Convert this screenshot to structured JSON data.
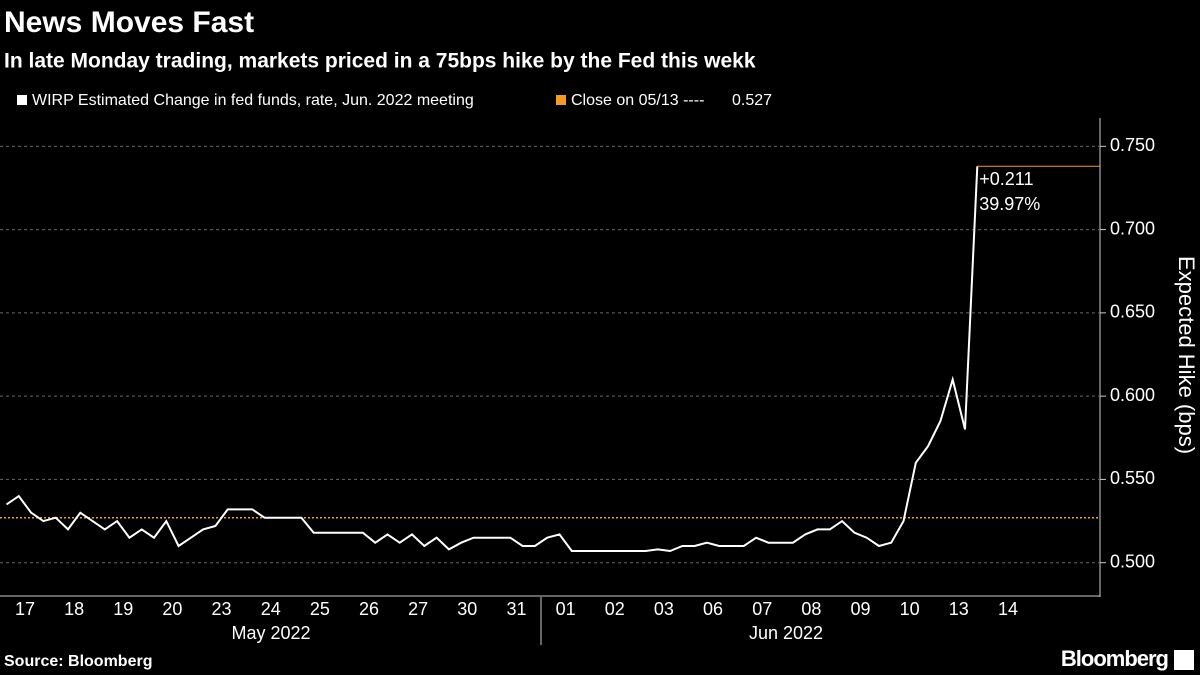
{
  "chart_data": {
    "type": "line",
    "title": "News Moves Fast",
    "subtitle": "In late Monday trading, markets priced in a 75bps hike by the Fed this wekk",
    "y_label": "Expected Hike (bps)",
    "source": "Source: Bloomberg",
    "brand": "Bloomberg",
    "months": [
      "May 2022",
      "Jun 2022"
    ],
    "categories": [
      "17",
      null,
      null,
      null,
      "18",
      null,
      null,
      null,
      "19",
      null,
      null,
      null,
      "20",
      null,
      null,
      null,
      "23",
      null,
      null,
      null,
      "24",
      null,
      null,
      null,
      "25",
      null,
      null,
      null,
      "26",
      null,
      null,
      null,
      "27",
      null,
      null,
      null,
      "30",
      null,
      null,
      null,
      "31",
      null,
      null,
      null,
      "01",
      null,
      null,
      null,
      "02",
      null,
      null,
      null,
      "03",
      null,
      null,
      null,
      "06",
      null,
      null,
      null,
      "07",
      null,
      null,
      null,
      "08",
      null,
      null,
      null,
      "09",
      null,
      null,
      null,
      "10",
      null,
      null,
      null,
      "13",
      null,
      null,
      null,
      "14",
      null,
      null,
      null
    ],
    "series": [
      {
        "name": "WIRP Estimated Change in fed funds, rate, Jun. 2022 meeting",
        "color": "#ffffff",
        "values": [
          0.535,
          0.54,
          0.53,
          0.525,
          0.527,
          0.52,
          0.53,
          0.525,
          0.52,
          0.525,
          0.515,
          0.52,
          0.515,
          0.525,
          0.51,
          0.515,
          0.52,
          0.522,
          0.532,
          0.532,
          0.532,
          0.527,
          0.527,
          0.527,
          0.527,
          0.518,
          0.518,
          0.518,
          0.518,
          0.518,
          0.512,
          0.517,
          0.512,
          0.517,
          0.51,
          0.515,
          0.508,
          0.512,
          0.515,
          0.515,
          0.515,
          0.515,
          0.51,
          0.51,
          0.515,
          0.517,
          0.507,
          0.507,
          0.507,
          0.507,
          0.507,
          0.507,
          0.507,
          0.508,
          0.507,
          0.51,
          0.51,
          0.512,
          0.51,
          0.51,
          0.51,
          0.515,
          0.512,
          0.512,
          0.512,
          0.517,
          0.52,
          0.52,
          0.525,
          0.518,
          0.515,
          0.51,
          0.512,
          0.525,
          0.56,
          0.57,
          0.585,
          0.61,
          0.58,
          0.738,
          null,
          null,
          null,
          null
        ]
      }
    ],
    "reference_line": {
      "label": "Close on 05/13 ----",
      "value": 0.527,
      "color": "#f39c1f"
    },
    "annotations": [
      "+0.211",
      "39.97%"
    ],
    "ylim": [
      0.48,
      0.767
    ],
    "yticks": [
      {
        "value": 0.5,
        "label": "0.500"
      },
      {
        "value": 0.55,
        "label": "0.550"
      },
      {
        "value": 0.6,
        "label": "0.600"
      },
      {
        "value": 0.65,
        "label": "0.650"
      },
      {
        "value": 0.7,
        "label": "0.700"
      },
      {
        "value": 0.75,
        "label": "0.750"
      }
    ],
    "grid": true
  }
}
